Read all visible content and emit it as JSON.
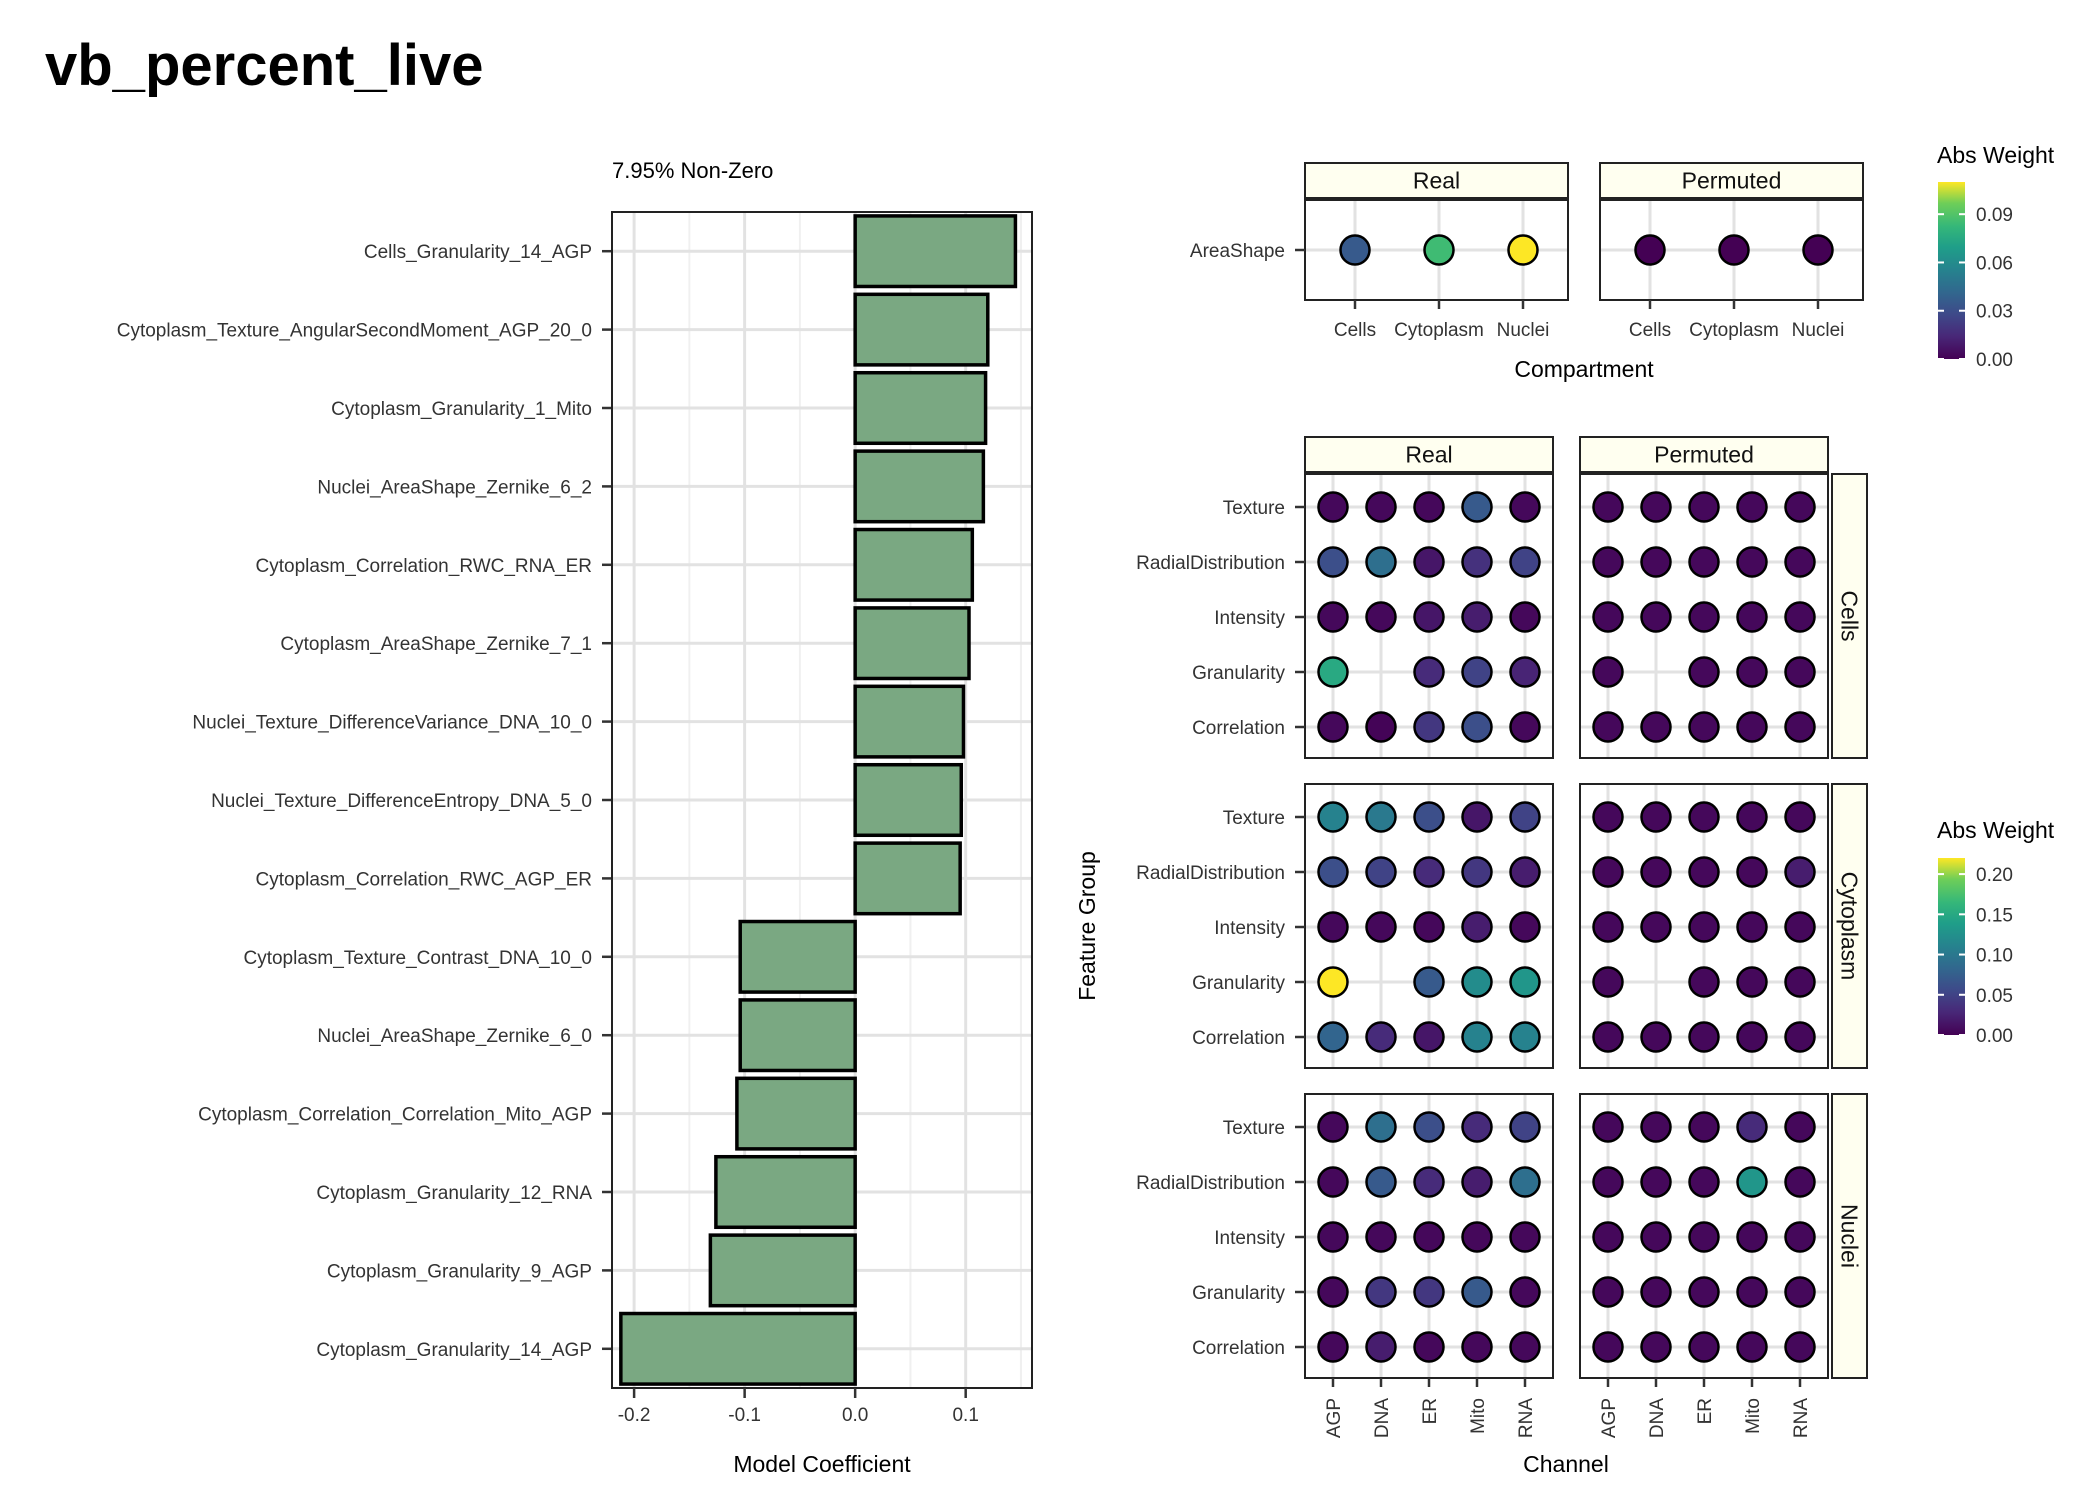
{
  "page_title": "vb_percent_live",
  "chart_data": [
    {
      "type": "bar",
      "subtitle": "7.95% Non-Zero",
      "xlabel": "Model Coefficient",
      "ylabel": "",
      "xlim": [
        -0.22,
        0.16
      ],
      "xticks": [
        "-0.2",
        "-0.1",
        "0.0",
        "0.1"
      ],
      "xtick_values": [
        -0.2,
        -0.1,
        0.0,
        0.1
      ],
      "bar_color": "#7aa882",
      "categories": [
        "Cells_Granularity_14_AGP",
        "Cytoplasm_Texture_AngularSecondMoment_AGP_20_0",
        "Cytoplasm_Granularity_1_Mito",
        "Nuclei_AreaShape_Zernike_6_2",
        "Cytoplasm_Correlation_RWC_RNA_ER",
        "Cytoplasm_AreaShape_Zernike_7_1",
        "Nuclei_Texture_DifferenceVariance_DNA_10_0",
        "Nuclei_Texture_DifferenceEntropy_DNA_5_0",
        "Cytoplasm_Correlation_RWC_AGP_ER",
        "Cytoplasm_Texture_Contrast_DNA_10_0",
        "Nuclei_AreaShape_Zernike_6_0",
        "Cytoplasm_Correlation_Correlation_Mito_AGP",
        "Cytoplasm_Granularity_12_RNA",
        "Cytoplasm_Granularity_9_AGP",
        "Cytoplasm_Granularity_14_AGP"
      ],
      "values": [
        0.145,
        0.12,
        0.118,
        0.116,
        0.106,
        0.103,
        0.098,
        0.096,
        0.095,
        -0.104,
        -0.104,
        -0.107,
        -0.126,
        -0.131,
        -0.212
      ],
      "grid": true
    },
    {
      "type": "heatmap",
      "xlabel": "Compartment",
      "facets": [
        "Real",
        "Permuted"
      ],
      "row_labels": [
        "AreaShape"
      ],
      "columns": [
        "Cells",
        "Cytoplasm",
        "Nuclei"
      ],
      "values": {
        "Real": [
          [
            0.035,
            0.085,
            0.11
          ]
        ],
        "Permuted": [
          [
            0.0,
            0.0,
            0.0
          ]
        ]
      },
      "legend": {
        "title": "Abs Weight",
        "ticks": [
          "0.09",
          "0.06",
          "0.03",
          "0.00"
        ],
        "tick_values": [
          0.09,
          0.06,
          0.03,
          0.0
        ],
        "range": [
          0,
          0.11
        ],
        "position": "right"
      }
    },
    {
      "type": "heatmap",
      "xlabel": "Channel",
      "ylabel": "Feature Group",
      "facet_cols": [
        "Real",
        "Permuted"
      ],
      "facet_rows": [
        "Cells",
        "Cytoplasm",
        "Nuclei"
      ],
      "row_labels": [
        "Texture",
        "RadialDistribution",
        "Intensity",
        "Granularity",
        "Correlation"
      ],
      "columns": [
        "AGP",
        "DNA",
        "ER",
        "Mito",
        "RNA"
      ],
      "values": {
        "Cells": {
          "Real": [
            [
              0.005,
              0.005,
              0.005,
              0.07,
              0.005
            ],
            [
              0.06,
              0.09,
              0.015,
              0.035,
              0.05
            ],
            [
              0.005,
              0.005,
              0.015,
              0.02,
              0.005
            ],
            [
              0.15,
              null,
              0.03,
              0.05,
              0.025
            ],
            [
              0.005,
              0.002,
              0.04,
              0.06,
              0.005
            ]
          ],
          "Permuted": [
            [
              0.005,
              0.005,
              0.005,
              0.005,
              0.005
            ],
            [
              0.005,
              0.005,
              0.005,
              0.005,
              0.005
            ],
            [
              0.005,
              0.005,
              0.005,
              0.005,
              0.005
            ],
            [
              0.005,
              null,
              0.005,
              0.005,
              0.005
            ],
            [
              0.005,
              0.005,
              0.005,
              0.005,
              0.005
            ]
          ]
        },
        "Cytoplasm": {
          "Real": [
            [
              0.11,
              0.1,
              0.06,
              0.015,
              0.05
            ],
            [
              0.06,
              0.05,
              0.03,
              0.04,
              0.02
            ],
            [
              0.005,
              0.005,
              0.005,
              0.02,
              0.005
            ],
            [
              0.22,
              null,
              0.07,
              0.12,
              0.13
            ],
            [
              0.08,
              0.03,
              0.015,
              0.11,
              0.11
            ]
          ],
          "Permuted": [
            [
              0.005,
              0.005,
              0.005,
              0.005,
              0.005
            ],
            [
              0.005,
              0.005,
              0.005,
              0.005,
              0.02
            ],
            [
              0.005,
              0.005,
              0.005,
              0.005,
              0.005
            ],
            [
              0.005,
              null,
              0.005,
              0.005,
              0.005
            ],
            [
              0.005,
              0.005,
              0.005,
              0.005,
              0.005
            ]
          ]
        },
        "Nuclei": {
          "Real": [
            [
              0.005,
              0.09,
              0.06,
              0.03,
              0.05
            ],
            [
              0.005,
              0.07,
              0.03,
              0.02,
              0.09
            ],
            [
              0.005,
              0.005,
              0.005,
              0.005,
              0.005
            ],
            [
              0.005,
              0.04,
              0.04,
              0.07,
              0.005
            ],
            [
              0.005,
              0.02,
              0.005,
              0.005,
              0.005
            ]
          ],
          "Permuted": [
            [
              0.005,
              0.005,
              0.005,
              0.03,
              0.005
            ],
            [
              0.005,
              0.005,
              0.005,
              0.13,
              0.005
            ],
            [
              0.005,
              0.005,
              0.005,
              0.005,
              0.005
            ],
            [
              0.005,
              0.005,
              0.005,
              0.005,
              0.005
            ],
            [
              0.005,
              0.005,
              0.005,
              0.005,
              0.005
            ]
          ]
        }
      },
      "legend": {
        "title": "Abs Weight",
        "ticks": [
          "0.20",
          "0.15",
          "0.10",
          "0.05",
          "0.00"
        ],
        "tick_values": [
          0.2,
          0.15,
          0.1,
          0.05,
          0.0
        ],
        "range": [
          0,
          0.22
        ],
        "position": "right"
      }
    }
  ]
}
